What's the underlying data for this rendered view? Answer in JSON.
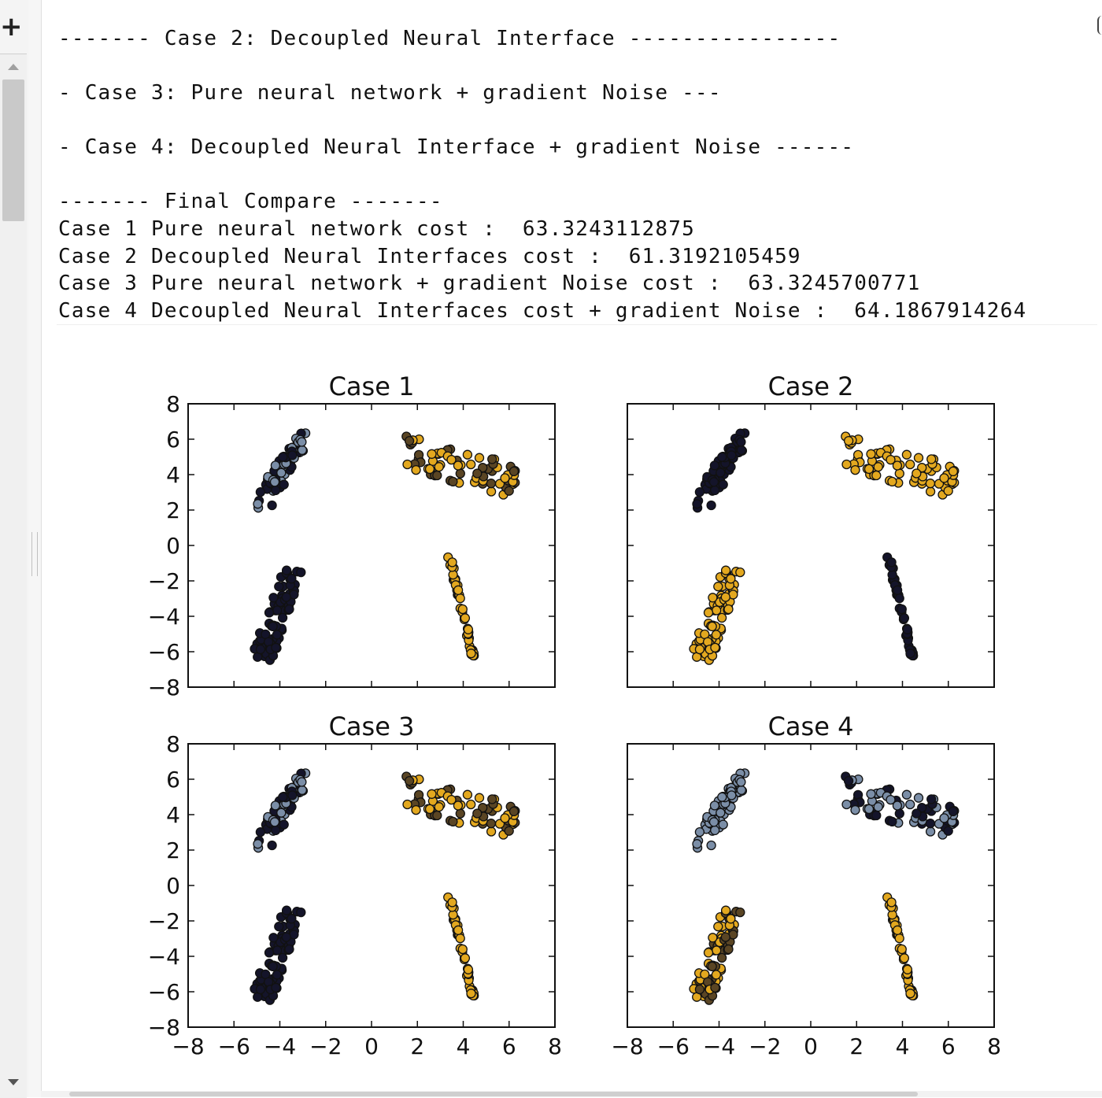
{
  "toolbar": {
    "add_label": "+"
  },
  "console": {
    "lines": [
      "------- Case 2: Decoupled Neural Interface ----------------",
      "- Case 3: Pure neural network + gradient Noise ---",
      "- Case 4: Decoupled Neural Interface + gradient Noise ------",
      "------- Final Compare -------",
      "Case 1 Pure neural network cost :  63.3243112875",
      "Case 2 Decoupled Neural Interfaces cost :  61.3192105459",
      "Case 3 Pure neural network + gradient Noise cost :  63.3245700771",
      "Case 4 Decoupled Neural Interfaces cost + gradient Noise :  64.1867914264"
    ]
  },
  "colors": {
    "navy": "#14142a",
    "steel": "#7b8ea7",
    "gold": "#e3a81f",
    "brown": "#5a4524"
  },
  "chart_data": [
    {
      "type": "scatter",
      "title": "Case 1",
      "xlim": [
        -8,
        8
      ],
      "ylim": [
        -8,
        8
      ],
      "xticks": [
        "−8",
        "−6",
        "−4",
        "−2",
        "0",
        "2",
        "4",
        "6",
        "8"
      ],
      "yticks": [
        "−8",
        "−6",
        "−4",
        "−2",
        "0",
        "2",
        "4",
        "6",
        "8"
      ],
      "show_xticklabels": false,
      "show_yticklabels": true,
      "clusters": [
        {
          "x_range": [
            -4.8,
            -3.0
          ],
          "y_range": [
            2.3,
            6.2
          ],
          "color_mix": [
            "navy",
            "steel"
          ]
        },
        {
          "x_range": [
            1.5,
            6.3
          ],
          "y_range": [
            1.8,
            5.6
          ],
          "color_mix": [
            "gold",
            "brown"
          ]
        },
        {
          "x_range": [
            -5.3,
            -3.0
          ],
          "y_range": [
            -6.8,
            -1.2
          ],
          "color_mix": [
            "navy"
          ]
        },
        {
          "x_range": [
            3.4,
            4.5
          ],
          "y_range": [
            -6.6,
            -0.6
          ],
          "color_mix": [
            "gold"
          ]
        }
      ]
    },
    {
      "type": "scatter",
      "title": "Case 2",
      "xlim": [
        -8,
        8
      ],
      "ylim": [
        -8,
        8
      ],
      "xticks": [
        "−8",
        "−6",
        "−4",
        "−2",
        "0",
        "2",
        "4",
        "6",
        "8"
      ],
      "yticks": [
        "−8",
        "−6",
        "−4",
        "−2",
        "0",
        "2",
        "4",
        "6",
        "8"
      ],
      "show_xticklabels": false,
      "show_yticklabels": false,
      "clusters": [
        {
          "x_range": [
            -4.8,
            -3.0
          ],
          "y_range": [
            2.3,
            6.2
          ],
          "color_mix": [
            "navy"
          ]
        },
        {
          "x_range": [
            1.5,
            6.3
          ],
          "y_range": [
            1.8,
            5.6
          ],
          "color_mix": [
            "gold"
          ]
        },
        {
          "x_range": [
            -5.3,
            -3.0
          ],
          "y_range": [
            -6.8,
            -1.2
          ],
          "color_mix": [
            "gold"
          ]
        },
        {
          "x_range": [
            3.4,
            4.5
          ],
          "y_range": [
            -6.6,
            -0.6
          ],
          "color_mix": [
            "navy"
          ]
        }
      ]
    },
    {
      "type": "scatter",
      "title": "Case 3",
      "xlim": [
        -8,
        8
      ],
      "ylim": [
        -8,
        8
      ],
      "xticks": [
        "−8",
        "−6",
        "−4",
        "−2",
        "0",
        "2",
        "4",
        "6",
        "8"
      ],
      "yticks": [
        "−8",
        "−6",
        "−4",
        "−2",
        "0",
        "2",
        "4",
        "6",
        "8"
      ],
      "show_xticklabels": true,
      "show_yticklabels": true,
      "clusters": [
        {
          "x_range": [
            -4.8,
            -3.0
          ],
          "y_range": [
            2.3,
            6.2
          ],
          "color_mix": [
            "navy",
            "steel"
          ]
        },
        {
          "x_range": [
            1.5,
            6.3
          ],
          "y_range": [
            1.8,
            5.6
          ],
          "color_mix": [
            "gold",
            "brown"
          ]
        },
        {
          "x_range": [
            -5.3,
            -3.0
          ],
          "y_range": [
            -6.8,
            -1.2
          ],
          "color_mix": [
            "navy"
          ]
        },
        {
          "x_range": [
            3.4,
            4.5
          ],
          "y_range": [
            -6.6,
            -0.6
          ],
          "color_mix": [
            "gold"
          ]
        }
      ]
    },
    {
      "type": "scatter",
      "title": "Case 4",
      "xlim": [
        -8,
        8
      ],
      "ylim": [
        -8,
        8
      ],
      "xticks": [
        "−8",
        "−6",
        "−4",
        "−2",
        "0",
        "2",
        "4",
        "6",
        "8"
      ],
      "yticks": [
        "−8",
        "−6",
        "−4",
        "−2",
        "0",
        "2",
        "4",
        "6",
        "8"
      ],
      "show_xticklabels": true,
      "show_yticklabels": false,
      "clusters": [
        {
          "x_range": [
            -4.8,
            -3.0
          ],
          "y_range": [
            2.3,
            6.2
          ],
          "color_mix": [
            "steel"
          ]
        },
        {
          "x_range": [
            1.5,
            6.3
          ],
          "y_range": [
            1.8,
            5.6
          ],
          "color_mix": [
            "steel",
            "navy"
          ]
        },
        {
          "x_range": [
            -5.3,
            -3.0
          ],
          "y_range": [
            -6.8,
            -1.2
          ],
          "color_mix": [
            "gold",
            "brown"
          ]
        },
        {
          "x_range": [
            3.4,
            4.5
          ],
          "y_range": [
            -6.6,
            -0.6
          ],
          "color_mix": [
            "gold"
          ]
        }
      ]
    }
  ]
}
